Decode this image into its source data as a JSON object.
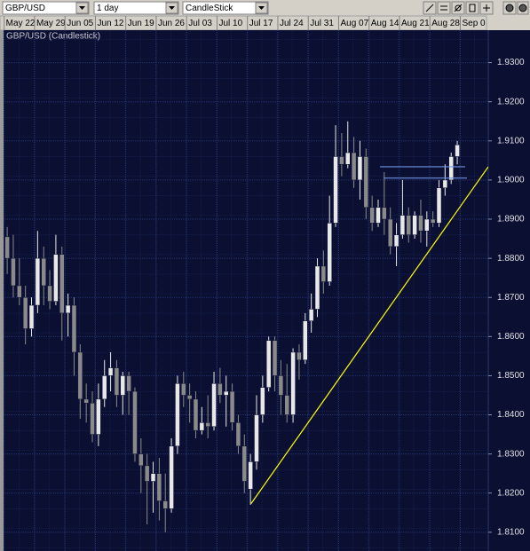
{
  "toolbar": {
    "symbol": "GBP/USD",
    "interval": "1 day",
    "style": "CandleStick"
  },
  "chart_data": {
    "type": "candlestick",
    "title": "GBP/USD (Candlestick)",
    "up_color": "#e8e8e8",
    "down_color": "#8a8a8a",
    "grid": true,
    "xlim": [
      -0.6,
      79.1
    ],
    "xticks": [
      {
        "value": -0.5,
        "label": "May 22"
      },
      {
        "value": 4.5,
        "label": "May 29"
      },
      {
        "value": 9.5,
        "label": "Jun 05"
      },
      {
        "value": 14.5,
        "label": "Jun 12"
      },
      {
        "value": 19.5,
        "label": "Jun 19"
      },
      {
        "value": 24.5,
        "label": "Jun 26"
      },
      {
        "value": 29.5,
        "label": "Jul 03"
      },
      {
        "value": 34.5,
        "label": "Jul 10"
      },
      {
        "value": 39.5,
        "label": "Jul 17"
      },
      {
        "value": 44.5,
        "label": "Jul 24"
      },
      {
        "value": 49.5,
        "label": "Jul 31"
      },
      {
        "value": 54.5,
        "label": "Aug 07"
      },
      {
        "value": 59.5,
        "label": "Aug 14"
      },
      {
        "value": 64.5,
        "label": "Aug 21"
      },
      {
        "value": 69.5,
        "label": "Aug 28"
      },
      {
        "value": 74.5,
        "label": "Sep 0"
      }
    ],
    "ylim": [
      1.8052,
      1.9383
    ],
    "yticks": [
      {
        "value": 1.81,
        "label": "1.8100"
      },
      {
        "value": 1.82,
        "label": "1.8200"
      },
      {
        "value": 1.83,
        "label": "1.8300"
      },
      {
        "value": 1.84,
        "label": "1.8400"
      },
      {
        "value": 1.85,
        "label": "1.8500"
      },
      {
        "value": 1.86,
        "label": "1.8600"
      },
      {
        "value": 1.87,
        "label": "1.8700"
      },
      {
        "value": 1.88,
        "label": "1.8800"
      },
      {
        "value": 1.89,
        "label": "1.8900"
      },
      {
        "value": 1.9,
        "label": "1.9000"
      },
      {
        "value": 1.91,
        "label": "1.9100"
      },
      {
        "value": 1.92,
        "label": "1.9200"
      },
      {
        "value": 1.93,
        "label": "1.9300"
      }
    ],
    "open": [
      1.8855,
      1.88,
      1.873,
      1.87,
      1.862,
      1.868,
      1.88,
      1.873,
      1.869,
      1.881,
      1.866,
      1.868,
      1.856,
      1.844,
      1.843,
      1.835,
      1.844,
      1.85,
      1.852,
      1.845,
      1.85,
      1.846,
      1.83,
      1.827,
      1.823,
      1.825,
      1.818,
      1.816,
      1.832,
      1.848,
      1.845,
      1.844,
      1.836,
      1.838,
      1.837,
      1.848,
      1.845,
      1.846,
      1.838,
      1.832,
      1.821,
      1.828,
      1.84,
      1.847,
      1.859,
      1.85,
      1.845,
      1.84,
      1.856,
      1.854,
      1.864,
      1.867,
      1.878,
      1.874,
      1.889,
      1.906,
      1.904,
      1.907,
      1.9,
      1.906,
      1.893,
      1.889,
      1.893,
      1.89,
      1.883,
      1.886,
      1.891,
      1.886,
      1.891,
      1.887,
      1.89,
      1.889,
      1.898,
      1.9,
      1.906
    ],
    "high": [
      1.888,
      1.886,
      1.88,
      1.873,
      1.87,
      1.887,
      1.883,
      1.877,
      1.886,
      1.883,
      1.871,
      1.87,
      1.858,
      1.848,
      1.846,
      1.848,
      1.854,
      1.856,
      1.854,
      1.851,
      1.851,
      1.847,
      1.834,
      1.83,
      1.828,
      1.829,
      1.825,
      1.834,
      1.85,
      1.851,
      1.848,
      1.846,
      1.842,
      1.845,
      1.851,
      1.852,
      1.85,
      1.848,
      1.84,
      1.835,
      1.83,
      1.845,
      1.85,
      1.86,
      1.86,
      1.854,
      1.853,
      1.857,
      1.858,
      1.866,
      1.871,
      1.88,
      1.882,
      1.896,
      1.914,
      1.912,
      1.915,
      1.911,
      1.91,
      1.908,
      1.896,
      1.895,
      1.902,
      1.893,
      1.889,
      1.9,
      1.893,
      1.892,
      1.895,
      1.892,
      1.892,
      1.9,
      1.904,
      1.907,
      1.91
    ],
    "low": [
      1.876,
      1.87,
      1.868,
      1.858,
      1.86,
      1.866,
      1.868,
      1.867,
      1.868,
      1.859,
      1.86,
      1.85,
      1.839,
      1.838,
      1.833,
      1.832,
      1.842,
      1.846,
      1.842,
      1.84,
      1.84,
      1.828,
      1.82,
      1.812,
      1.815,
      1.813,
      1.81,
      1.815,
      1.83,
      1.842,
      1.838,
      1.834,
      1.835,
      1.834,
      1.836,
      1.843,
      1.837,
      1.836,
      1.83,
      1.82,
      1.817,
      1.826,
      1.838,
      1.846,
      1.846,
      1.84,
      1.838,
      1.838,
      1.849,
      1.853,
      1.861,
      1.865,
      1.871,
      1.873,
      1.888,
      1.901,
      1.903,
      1.898,
      1.895,
      1.89,
      1.887,
      1.888,
      1.886,
      1.881,
      1.878,
      1.885,
      1.884,
      1.885,
      1.884,
      1.883,
      1.888,
      1.888,
      1.896,
      1.899,
      1.904
    ],
    "close": [
      1.88,
      1.873,
      1.87,
      1.862,
      1.868,
      1.88,
      1.873,
      1.869,
      1.881,
      1.866,
      1.868,
      1.856,
      1.844,
      1.843,
      1.835,
      1.844,
      1.85,
      1.852,
      1.845,
      1.85,
      1.846,
      1.83,
      1.827,
      1.823,
      1.825,
      1.818,
      1.816,
      1.832,
      1.848,
      1.845,
      1.844,
      1.836,
      1.838,
      1.837,
      1.848,
      1.845,
      1.846,
      1.838,
      1.832,
      1.823,
      1.828,
      1.84,
      1.847,
      1.859,
      1.85,
      1.845,
      1.84,
      1.856,
      1.854,
      1.864,
      1.867,
      1.878,
      1.874,
      1.889,
      1.906,
      1.904,
      1.907,
      1.9,
      1.906,
      1.893,
      1.889,
      1.893,
      1.89,
      1.883,
      1.886,
      1.891,
      1.886,
      1.891,
      1.887,
      1.89,
      1.889,
      1.898,
      1.9,
      1.906,
      1.909
    ],
    "lines": [
      {
        "color": "#ffff00",
        "x": [
          40.1,
          79.1
        ],
        "y": [
          1.8173,
          1.9034
        ]
      },
      {
        "color": "#7090e0",
        "x": [
          61.3,
          75.3
        ],
        "y": [
          1.9034,
          1.9034
        ]
      },
      {
        "color": "#7090e0",
        "x": [
          61.9,
          75.6
        ],
        "y": [
          1.9005,
          1.9005
        ]
      }
    ]
  }
}
